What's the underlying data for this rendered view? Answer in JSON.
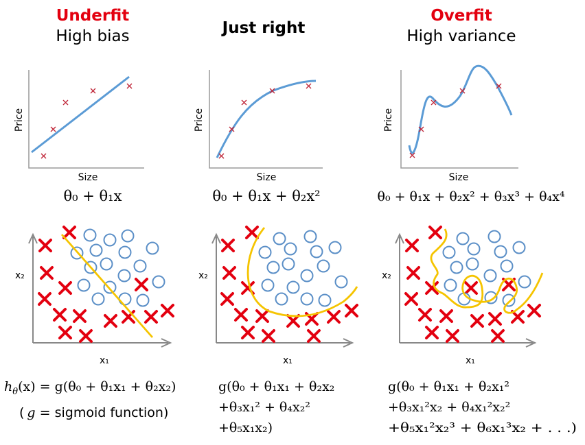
{
  "headers": {
    "underfit": {
      "title": "Underfit",
      "subtitle": "High bias"
    },
    "just_right": {
      "title": "Just right"
    },
    "overfit": {
      "title": "Overfit",
      "subtitle": "High variance"
    }
  },
  "regression": {
    "ylabel": "Price",
    "xlabel": "Size",
    "formulas": [
      "θ₀ + θ₁x",
      "θ₀ + θ₁x + θ₂x²",
      "θ₀ + θ₁x + θ₂x² + θ₃x³ + θ₄x⁴"
    ]
  },
  "classification": {
    "ylabel": "x₂",
    "xlabel": "x₁",
    "formulas": [
      [
        "h",
        "θ",
        "(x) = g(θ₀ + θ₁x₁ + θ₂x₂)"
      ],
      [
        "g(θ₀ + θ₁x₁ + θ₂x₂",
        "+θ₃x₁² + θ₄x₂²",
        "+θ₅x₁x₂)"
      ],
      [
        "g(θ₀ + θ₁x₁ + θ₂x₁²",
        "+θ₃x₁²x₂ + θ₄x₁²x₂²",
        "+θ₅x₁²x₂³ + θ₆x₁³x₂ + . . .)"
      ]
    ],
    "note_g": "g",
    "note_rest": " = sigmoid function)",
    "note_open": "("
  },
  "colors": {
    "curve": "#5b9bd5",
    "cross": "#e3000f",
    "boundary": "#f5c400",
    "axis": "#888888",
    "circle": "#5b8fc7",
    "header_red": "#e3000f"
  }
}
